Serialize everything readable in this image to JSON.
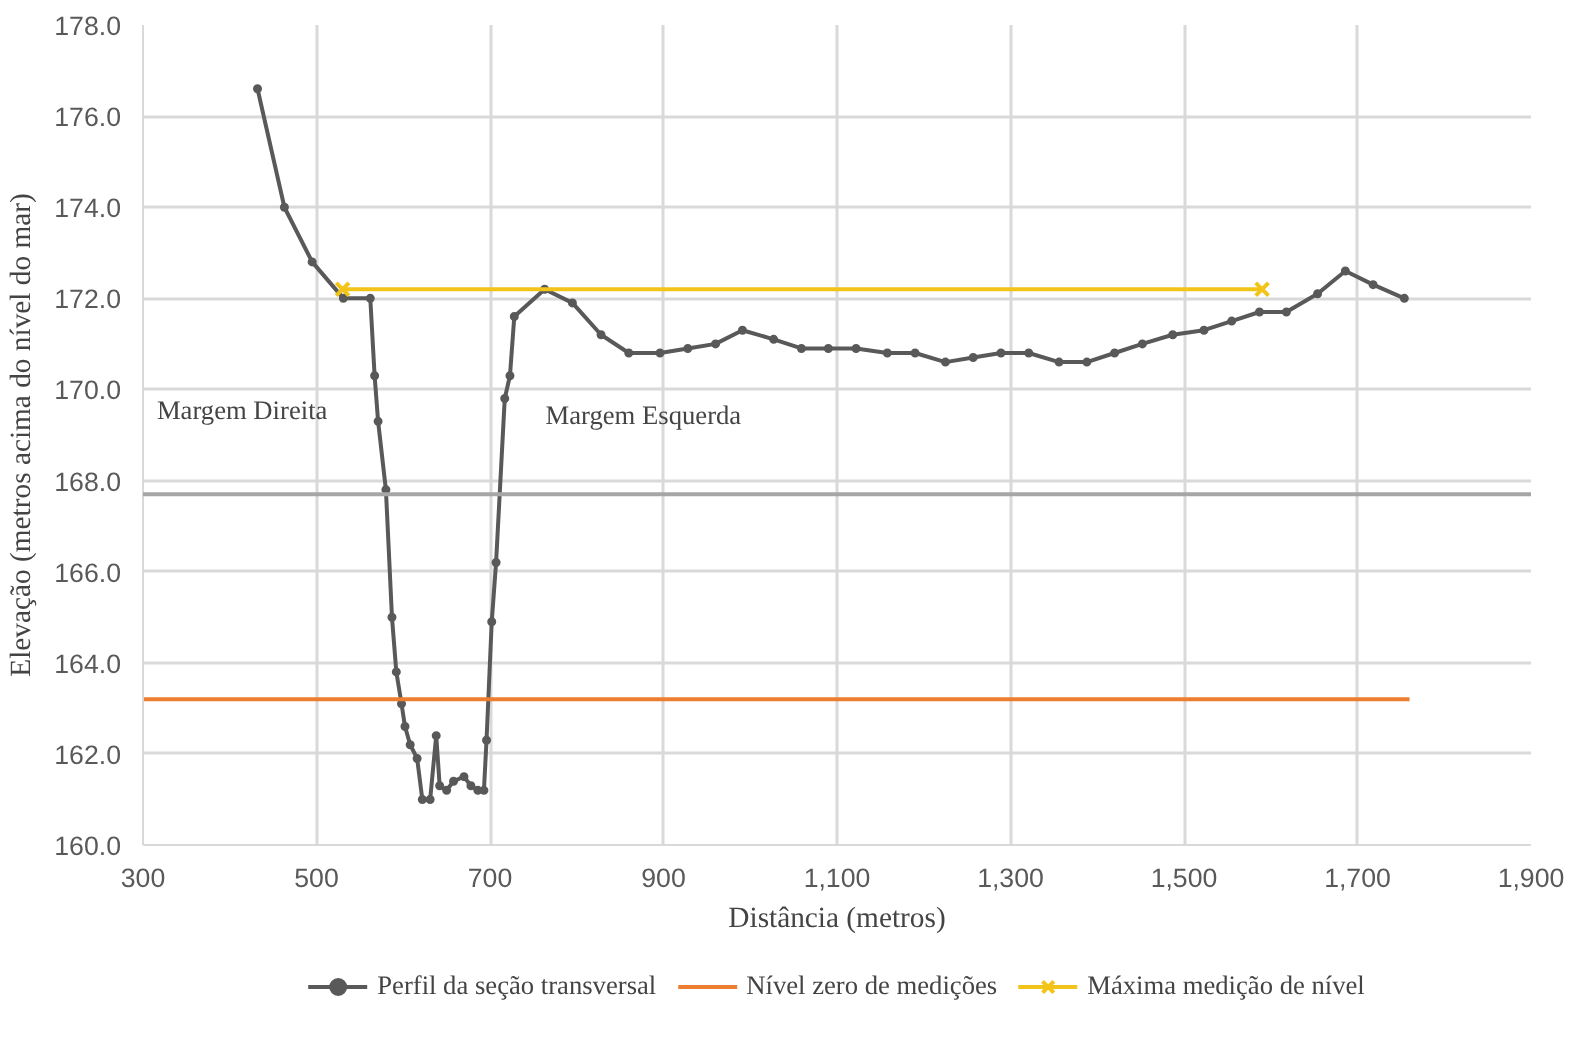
{
  "chart_data": {
    "type": "line",
    "xlabel": "Distância (metros)",
    "ylabel": "Elevação (metros acima do nível do mar)",
    "xlim": [
      300,
      1900
    ],
    "ylim": [
      160,
      178
    ],
    "xticks": [
      300,
      500,
      700,
      900,
      {
        "value": 1100,
        "label": "1,100"
      },
      {
        "value": 1300,
        "label": "1,300"
      },
      {
        "value": 1500,
        "label": "1,500"
      },
      {
        "value": 1700,
        "label": "1,700"
      },
      {
        "value": 1900,
        "label": "1,900"
      }
    ],
    "yticks": [
      {
        "value": 160,
        "label": "160.0"
      },
      {
        "value": 162,
        "label": "162.0"
      },
      {
        "value": 164,
        "label": "164.0"
      },
      {
        "value": 166,
        "label": "166.0"
      },
      {
        "value": 168,
        "label": "168.0"
      },
      {
        "value": 170,
        "label": "170.0"
      },
      {
        "value": 172,
        "label": "172.0"
      },
      {
        "value": 174,
        "label": "174.0"
      },
      {
        "value": 176,
        "label": "176.0"
      },
      {
        "value": 178,
        "label": "178.0"
      }
    ],
    "grid": true,
    "legend": "bottom",
    "series": [
      {
        "name": "Perfil da seção transversal",
        "color": "#595959",
        "marker": "circle",
        "x": [
          432,
          463,
          495,
          531,
          562,
          567,
          571,
          580,
          587,
          592,
          598,
          602,
          608,
          616,
          622,
          631,
          638,
          642,
          650,
          658,
          670,
          678,
          686,
          693,
          696,
          702,
          707,
          717,
          723,
          728,
          763,
          795,
          828,
          860,
          896,
          928,
          960,
          991,
          1027,
          1059,
          1090,
          1122,
          1158,
          1190,
          1225,
          1257,
          1289,
          1321,
          1356,
          1388,
          1420,
          1452,
          1487,
          1523,
          1555,
          1587,
          1618,
          1654,
          1686,
          1718,
          1754
        ],
        "values": [
          176.6,
          174.0,
          172.8,
          172.0,
          172.0,
          170.3,
          169.3,
          167.8,
          165.0,
          163.8,
          163.1,
          162.6,
          162.2,
          161.9,
          161.0,
          161.0,
          162.4,
          161.3,
          161.2,
          161.4,
          161.5,
          161.3,
          161.2,
          161.2,
          162.3,
          164.9,
          166.2,
          169.8,
          170.3,
          171.6,
          172.2,
          171.9,
          171.2,
          170.8,
          170.8,
          170.9,
          171.0,
          171.3,
          171.1,
          170.9,
          170.9,
          170.9,
          170.8,
          170.8,
          170.6,
          170.7,
          170.8,
          170.8,
          170.6,
          170.6,
          170.8,
          171.0,
          171.2,
          171.3,
          171.5,
          171.7,
          171.7,
          172.1,
          172.6,
          172.3,
          172.0
        ]
      },
      {
        "name": "Nível zero de medições",
        "color": "#ed7d31",
        "marker": "none",
        "x": [
          300,
          1760
        ],
        "values": [
          163.2,
          163.2
        ]
      },
      {
        "name": "Máxima medição de nível",
        "color": "#f2c318",
        "marker": "cross",
        "x": [
          530,
          1590
        ],
        "values": [
          172.2,
          172.2
        ]
      }
    ],
    "ref_lines": [
      {
        "axis": "y",
        "value": 167.7,
        "label": null,
        "color": "#a6a6a6"
      }
    ],
    "annotations": [
      "Margem Direita",
      "Margem Esquerda"
    ]
  }
}
